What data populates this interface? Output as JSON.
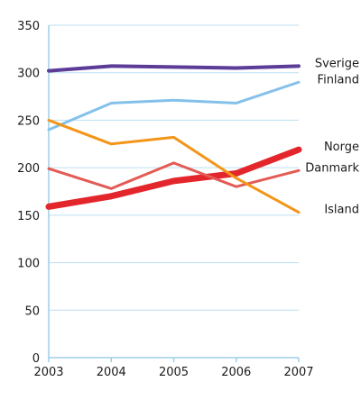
{
  "chart_data": {
    "type": "line",
    "x": [
      2003,
      2004,
      2005,
      2006,
      2007
    ],
    "xlim": [
      2003,
      2007
    ],
    "ylim": [
      0,
      350
    ],
    "yticks": [
      0,
      50,
      100,
      150,
      200,
      250,
      300,
      350
    ],
    "grid": "horizontal",
    "legend": "right",
    "series": [
      {
        "name": "Sverige",
        "values": [
          302,
          307,
          306,
          305,
          307
        ],
        "color": "#5b3c97",
        "width": 4
      },
      {
        "name": "Finland",
        "values": [
          240,
          268,
          271,
          268,
          290
        ],
        "color": "#84c1ea",
        "width": 3
      },
      {
        "name": "Norge",
        "values": [
          159,
          170,
          186,
          194,
          219
        ],
        "color": "#e3262b",
        "width": 7
      },
      {
        "name": "Danmark",
        "values": [
          199,
          178,
          205,
          180,
          197
        ],
        "color": "#e35b55",
        "width": 3
      },
      {
        "name": "Island",
        "values": [
          250,
          225,
          232,
          189,
          153
        ],
        "color": "#f39519",
        "width": 3
      }
    ]
  },
  "colors": {
    "grid": "#bcdff2",
    "axis": "#9ecfe9"
  }
}
